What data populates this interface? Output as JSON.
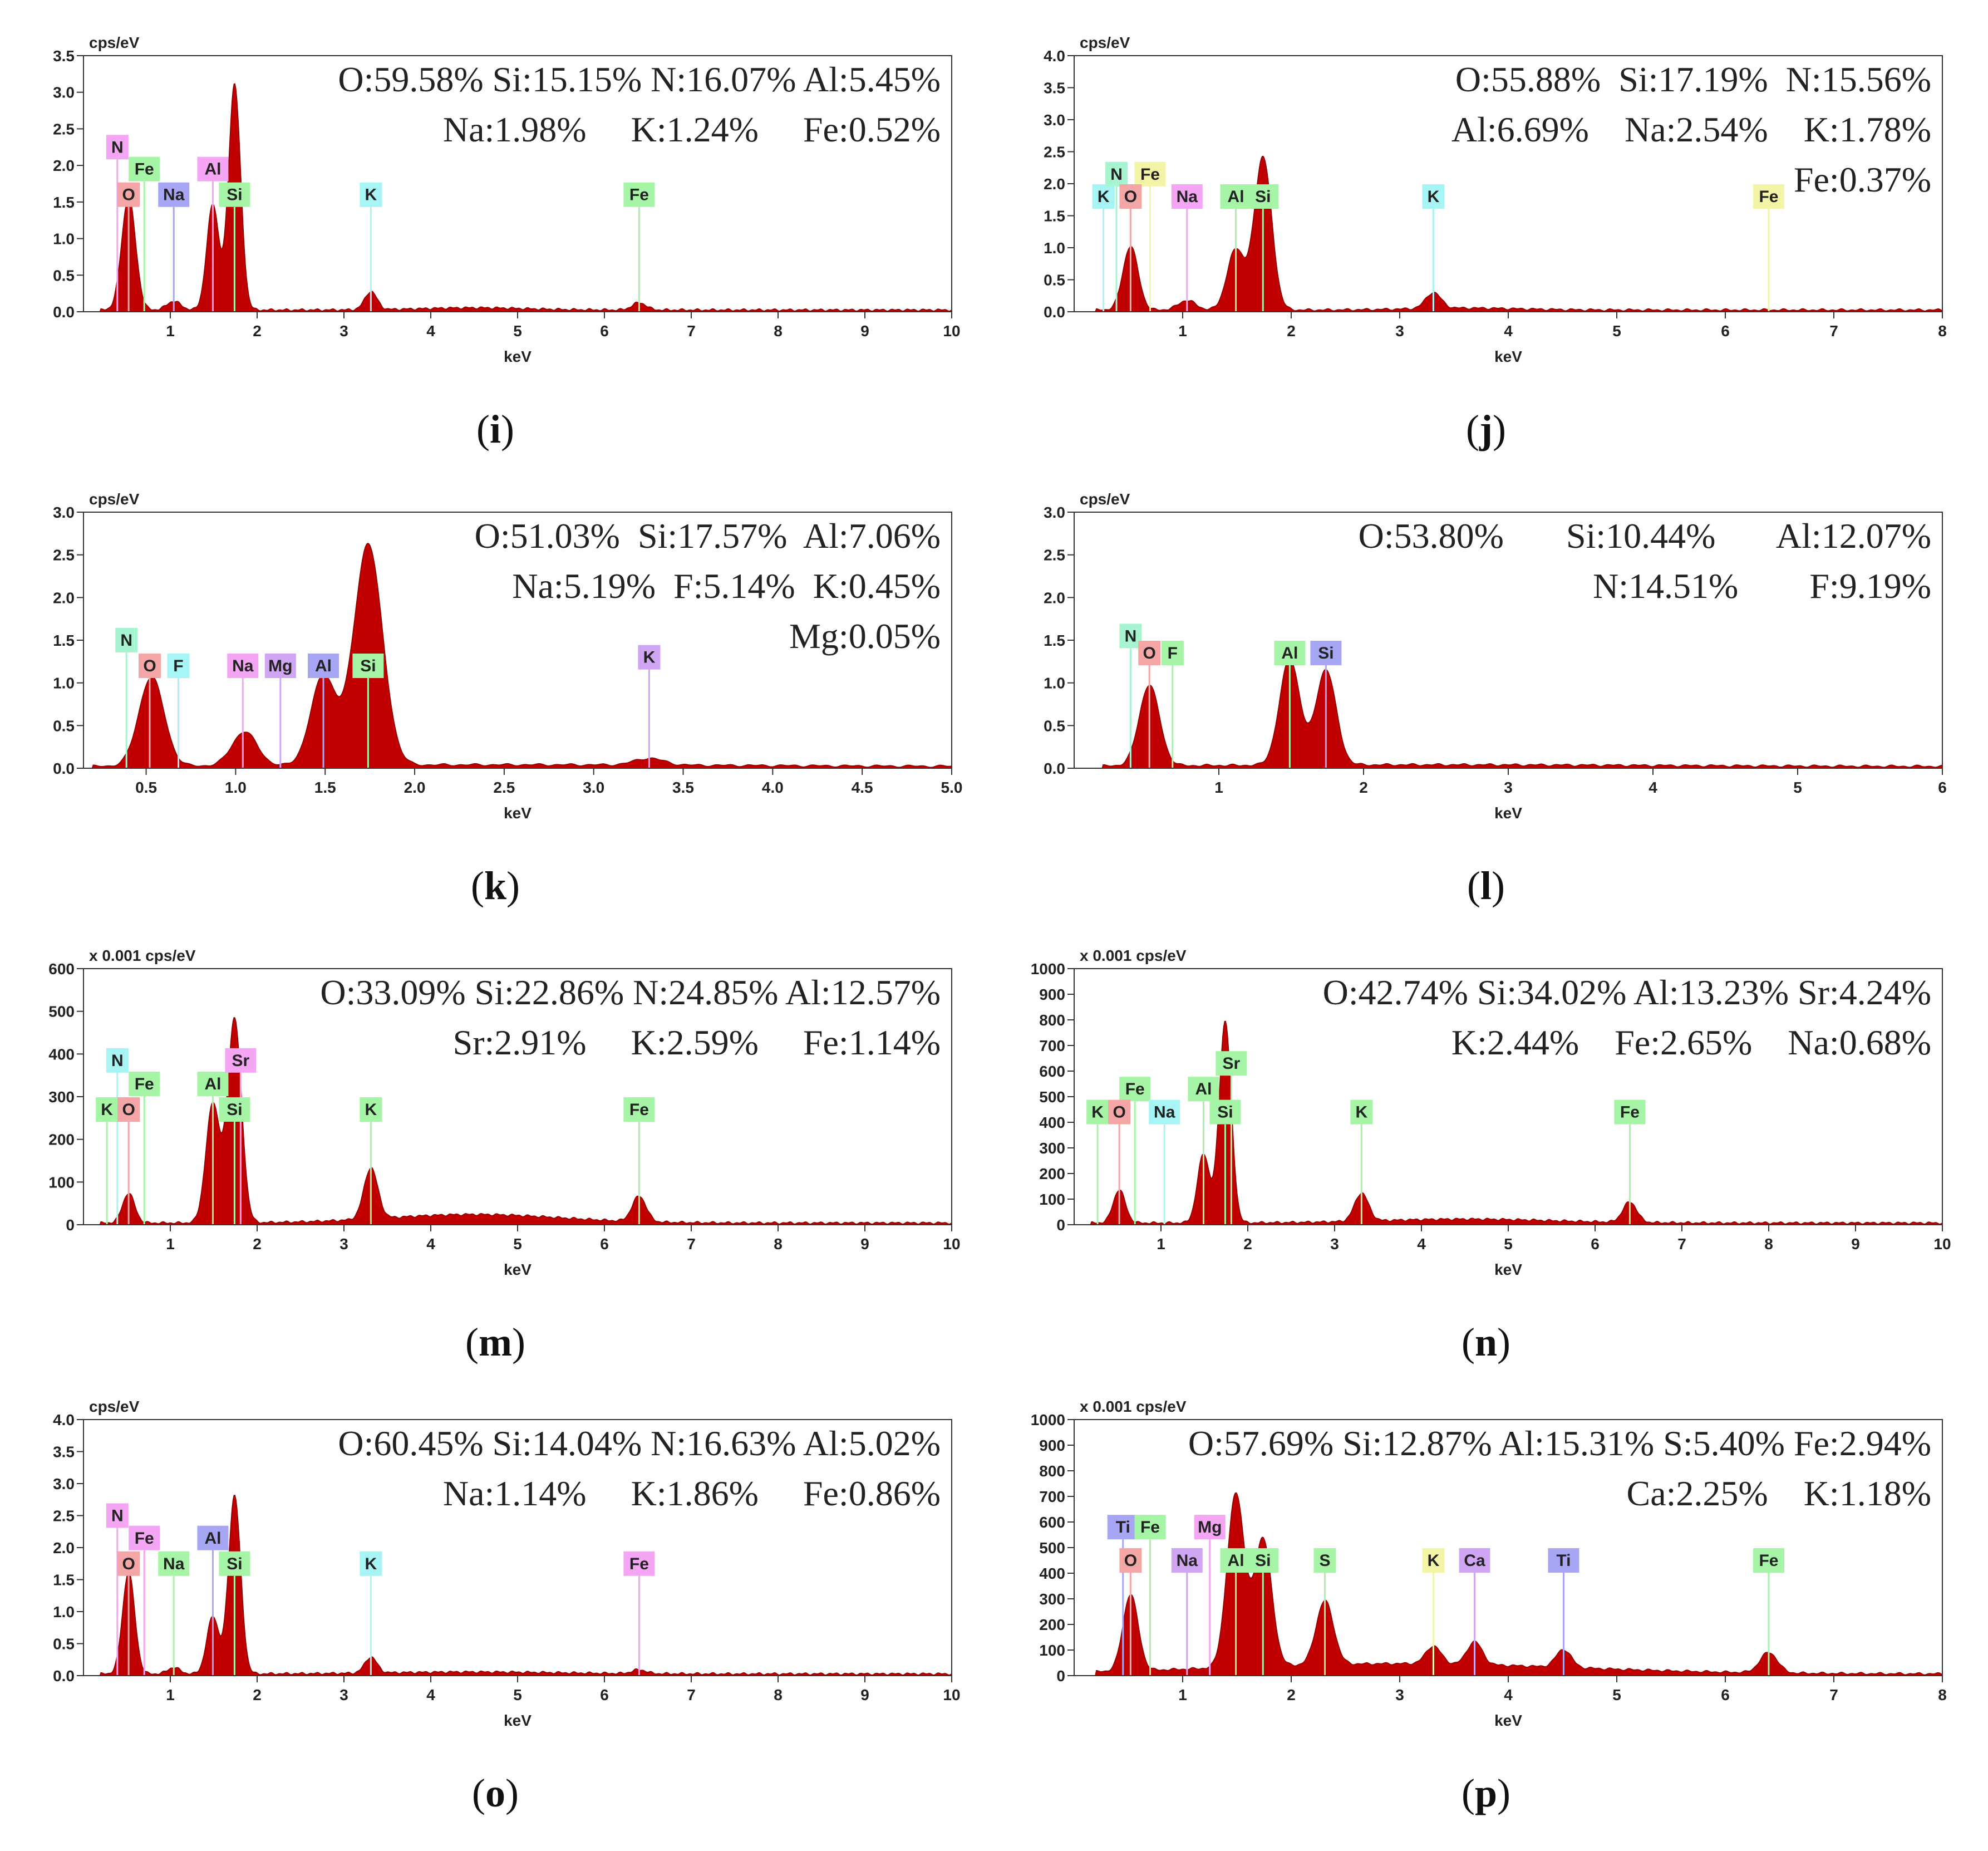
{
  "colors": {
    "spectrum": "#c00000",
    "spectrum_edge": "#8a0000",
    "axis": "#333333",
    "text": "#222222"
  },
  "chart_data": [
    {
      "id": "i",
      "type": "area",
      "caption_letter": "i",
      "units_label": "cps/eV",
      "xlabel": "keV",
      "xlim": [
        0,
        10
      ],
      "ylim": [
        0,
        3.5
      ],
      "xticks": [
        "1",
        "2",
        "3",
        "4",
        "5",
        "6",
        "7",
        "8",
        "9",
        "10"
      ],
      "yticks": [
        "0.0",
        "0.5",
        "1.0",
        "1.5",
        "2.0",
        "2.5",
        "3.0",
        "3.5"
      ],
      "composition_lines": [
        "O:59.58% Si:15.15% N:16.07% Al:5.45%",
        "Na:1.98%     K:1.24%     Fe:0.52%"
      ],
      "peaks": [
        [
          0.52,
          1.55,
          0.08
        ],
        [
          1.04,
          0.12,
          0.08
        ],
        [
          1.49,
          1.45,
          0.07
        ],
        [
          1.74,
          3.1,
          0.07
        ],
        [
          3.31,
          0.25,
          0.07
        ],
        [
          6.4,
          0.1,
          0.08
        ],
        [
          4.5,
          0.03,
          0.6
        ]
      ],
      "element_labels": [
        {
          "label": "N",
          "x": 0.39,
          "y": 2.25,
          "color": "#f4a6f4"
        },
        {
          "label": "Fe",
          "x": 0.7,
          "y": 1.95,
          "color": "#a6f4a6"
        },
        {
          "label": "O",
          "x": 0.52,
          "y": 1.6,
          "color": "#f4a6a6"
        },
        {
          "label": "Na",
          "x": 1.04,
          "y": 1.6,
          "color": "#a6a6f4"
        },
        {
          "label": "Al",
          "x": 1.49,
          "y": 1.95,
          "color": "#f4a6f4"
        },
        {
          "label": "Si",
          "x": 1.74,
          "y": 1.6,
          "color": "#a6f4a6"
        },
        {
          "label": "K",
          "x": 3.31,
          "y": 1.6,
          "color": "#a6f4f4"
        },
        {
          "label": "Fe",
          "x": 6.4,
          "y": 1.6,
          "color": "#a6f4a6"
        }
      ]
    },
    {
      "id": "j",
      "type": "area",
      "caption_letter": "j",
      "units_label": "cps/eV",
      "xlabel": "keV",
      "xlim": [
        0,
        8
      ],
      "ylim": [
        0,
        4.0
      ],
      "xticks": [
        "1",
        "2",
        "3",
        "4",
        "5",
        "6",
        "7",
        "8"
      ],
      "yticks": [
        "0.0",
        "0.5",
        "1.0",
        "1.5",
        "2.0",
        "2.5",
        "3.0",
        "3.5",
        "4.0"
      ],
      "composition_lines": [
        "O:55.88%  Si:17.19%  N:15.56%",
        "Al:6.69%    Na:2.54%    K:1.78%",
        "Fe:0.37%"
      ],
      "peaks": [
        [
          0.52,
          1.0,
          0.07
        ],
        [
          1.04,
          0.15,
          0.08
        ],
        [
          1.49,
          0.95,
          0.08
        ],
        [
          1.74,
          2.4,
          0.08
        ],
        [
          3.31,
          0.25,
          0.07
        ],
        [
          3.6,
          0.03,
          0.5
        ]
      ],
      "element_labels": [
        {
          "label": "K",
          "x": 0.27,
          "y": 1.8,
          "color": "#a6f4f4"
        },
        {
          "label": "N",
          "x": 0.39,
          "y": 2.15,
          "color": "#a6f4d0"
        },
        {
          "label": "Fe",
          "x": 0.7,
          "y": 2.15,
          "color": "#f4f4a6"
        },
        {
          "label": "O",
          "x": 0.52,
          "y": 1.8,
          "color": "#f4a6a6"
        },
        {
          "label": "Na",
          "x": 1.04,
          "y": 1.8,
          "color": "#f4a6f4"
        },
        {
          "label": "Al",
          "x": 1.49,
          "y": 1.8,
          "color": "#a6f4a6"
        },
        {
          "label": "Si",
          "x": 1.74,
          "y": 1.8,
          "color": "#a6f4a6"
        },
        {
          "label": "K",
          "x": 3.31,
          "y": 1.8,
          "color": "#a6f4f4"
        },
        {
          "label": "Fe",
          "x": 6.4,
          "y": 1.8,
          "color": "#f4f4a6"
        }
      ]
    },
    {
      "id": "k",
      "type": "area",
      "caption_letter": "k",
      "units_label": "cps/eV",
      "xlabel": "keV",
      "xlim": [
        0.15,
        5.0
      ],
      "ylim": [
        0,
        3.0
      ],
      "xticks": [
        "0.5",
        "1.0",
        "1.5",
        "2.0",
        "2.5",
        "3.0",
        "3.5",
        "4.0",
        "4.5",
        "5.0"
      ],
      "yticks": [
        "0.0",
        "0.5",
        "1.0",
        "1.5",
        "2.0",
        "2.5",
        "3.0"
      ],
      "composition_lines": [
        "O:51.03%  Si:17.57%  Al:7.06%",
        "Na:5.19%  F:5.14%  K:0.45%",
        "Mg:0.05%"
      ],
      "peaks": [
        [
          0.53,
          1.05,
          0.07
        ],
        [
          1.05,
          0.4,
          0.07
        ],
        [
          1.49,
          1.05,
          0.07
        ],
        [
          1.74,
          2.6,
          0.08
        ],
        [
          3.31,
          0.08,
          0.08
        ],
        [
          2.6,
          0.02,
          1.2
        ]
      ],
      "element_labels": [
        {
          "label": "N",
          "x": 0.39,
          "y": 1.5,
          "color": "#a6f4d0"
        },
        {
          "label": "O",
          "x": 0.52,
          "y": 1.2,
          "color": "#f4a6a6"
        },
        {
          "label": "F",
          "x": 0.68,
          "y": 1.2,
          "color": "#a6f4f4"
        },
        {
          "label": "Na",
          "x": 1.04,
          "y": 1.2,
          "color": "#f4a6f4"
        },
        {
          "label": "Mg",
          "x": 1.25,
          "y": 1.2,
          "color": "#d0a6f4"
        },
        {
          "label": "Al",
          "x": 1.49,
          "y": 1.2,
          "color": "#a6a6f4"
        },
        {
          "label": "Si",
          "x": 1.74,
          "y": 1.2,
          "color": "#a6f4a6"
        },
        {
          "label": "K",
          "x": 3.31,
          "y": 1.3,
          "color": "#d0a6f4"
        }
      ]
    },
    {
      "id": "l",
      "type": "area",
      "caption_letter": "l",
      "units_label": "cps/eV",
      "xlabel": "keV",
      "xlim": [
        0,
        6
      ],
      "ylim": [
        0,
        3.0
      ],
      "xticks": [
        "1",
        "2",
        "3",
        "4",
        "5",
        "6"
      ],
      "yticks": [
        "0.0",
        "0.5",
        "1.0",
        "1.5",
        "2.0",
        "2.5",
        "3.0"
      ],
      "composition_lines": [
        "O:53.80%       Si:10.44%       Al:12.07%",
        "N:14.51%        F:9.19%"
      ],
      "peaks": [
        [
          0.52,
          0.95,
          0.07
        ],
        [
          1.49,
          1.25,
          0.07
        ],
        [
          1.74,
          1.12,
          0.07
        ],
        [
          2.5,
          0.02,
          1.5
        ]
      ],
      "element_labels": [
        {
          "label": "N",
          "x": 0.39,
          "y": 1.55,
          "color": "#a6f4d0"
        },
        {
          "label": "O",
          "x": 0.52,
          "y": 1.35,
          "color": "#f4a6a6"
        },
        {
          "label": "F",
          "x": 0.68,
          "y": 1.35,
          "color": "#a6f4a6"
        },
        {
          "label": "Al",
          "x": 1.49,
          "y": 1.35,
          "color": "#a6f4a6"
        },
        {
          "label": "Si",
          "x": 1.74,
          "y": 1.35,
          "color": "#a6a6f4"
        }
      ]
    },
    {
      "id": "m",
      "type": "area",
      "caption_letter": "m",
      "units_label": "x 0.001 cps/eV",
      "xlabel": "keV",
      "xlim": [
        0,
        10
      ],
      "ylim": [
        0,
        600
      ],
      "xticks": [
        "1",
        "2",
        "3",
        "4",
        "5",
        "6",
        "7",
        "8",
        "9",
        "10"
      ],
      "yticks": [
        "0",
        "100",
        "200",
        "300",
        "400",
        "500",
        "600"
      ],
      "composition_lines": [
        "O:33.09% Si:22.86% N:24.85% Al:12.57%",
        "Sr:2.91%     K:2.59%     Fe:1.14%"
      ],
      "peaks": [
        [
          0.52,
          70,
          0.07
        ],
        [
          1.49,
          280,
          0.08
        ],
        [
          1.74,
          480,
          0.08
        ],
        [
          3.31,
          120,
          0.08
        ],
        [
          6.4,
          60,
          0.08
        ],
        [
          4.5,
          20,
          1.0
        ]
      ],
      "element_labels": [
        {
          "label": "N",
          "x": 0.39,
          "y": 385,
          "color": "#a6f4f4"
        },
        {
          "label": "Fe",
          "x": 0.7,
          "y": 330,
          "color": "#a6f4a6"
        },
        {
          "label": "K",
          "x": 0.27,
          "y": 270,
          "color": "#a6f4a6"
        },
        {
          "label": "O",
          "x": 0.52,
          "y": 270,
          "color": "#f4a6a6"
        },
        {
          "label": "Al",
          "x": 1.49,
          "y": 330,
          "color": "#a6f4a6"
        },
        {
          "label": "Sr",
          "x": 1.81,
          "y": 385,
          "color": "#f4a6f4"
        },
        {
          "label": "Si",
          "x": 1.74,
          "y": 270,
          "color": "#a6f4a6"
        },
        {
          "label": "K",
          "x": 3.31,
          "y": 270,
          "color": "#a6f4a6"
        },
        {
          "label": "Fe",
          "x": 6.4,
          "y": 270,
          "color": "#a6f4a6"
        }
      ]
    },
    {
      "id": "n",
      "type": "area",
      "caption_letter": "n",
      "units_label": "x 0.001 cps/eV",
      "xlabel": "keV",
      "xlim": [
        0,
        10
      ],
      "ylim": [
        0,
        1000
      ],
      "xticks": [
        "1",
        "2",
        "3",
        "4",
        "5",
        "6",
        "7",
        "8",
        "9",
        "10"
      ],
      "yticks": [
        "0",
        "100",
        "200",
        "300",
        "400",
        "500",
        "600",
        "700",
        "800",
        "900",
        "1000"
      ],
      "composition_lines": [
        "O:42.74% Si:34.02% Al:13.23% Sr:4.24%",
        "K:2.44%    Fe:2.65%    Na:0.68%"
      ],
      "peaks": [
        [
          0.52,
          130,
          0.07
        ],
        [
          1.49,
          270,
          0.07
        ],
        [
          1.74,
          790,
          0.07
        ],
        [
          3.31,
          110,
          0.08
        ],
        [
          6.4,
          80,
          0.08
        ],
        [
          4.5,
          15,
          1.0
        ]
      ],
      "element_labels": [
        {
          "label": "Fe",
          "x": 0.7,
          "y": 530,
          "color": "#a6f4a6"
        },
        {
          "label": "Al",
          "x": 1.49,
          "y": 530,
          "color": "#a6f4a6"
        },
        {
          "label": "Sr",
          "x": 1.81,
          "y": 630,
          "color": "#a6f4a6"
        },
        {
          "label": "K",
          "x": 0.27,
          "y": 440,
          "color": "#a6f4a6"
        },
        {
          "label": "O",
          "x": 0.52,
          "y": 440,
          "color": "#f4a6a6"
        },
        {
          "label": "Na",
          "x": 1.04,
          "y": 440,
          "color": "#a6f4f4"
        },
        {
          "label": "Si",
          "x": 1.74,
          "y": 440,
          "color": "#a6f4a6"
        },
        {
          "label": "K",
          "x": 3.31,
          "y": 440,
          "color": "#a6f4a6"
        },
        {
          "label": "Fe",
          "x": 6.4,
          "y": 440,
          "color": "#a6f4a6"
        }
      ]
    },
    {
      "id": "o",
      "type": "area",
      "caption_letter": "o",
      "units_label": "cps/eV",
      "xlabel": "keV",
      "xlim": [
        0,
        10
      ],
      "ylim": [
        0,
        4.0
      ],
      "xticks": [
        "1",
        "2",
        "3",
        "4",
        "5",
        "6",
        "7",
        "8",
        "9",
        "10"
      ],
      "yticks": [
        "0.0",
        "0.5",
        "1.0",
        "1.5",
        "2.0",
        "2.5",
        "3.0",
        "3.5",
        "4.0"
      ],
      "composition_lines": [
        "O:60.45% Si:14.04% N:16.63% Al:5.02%",
        "Na:1.14%     K:1.86%     Fe:0.86%"
      ],
      "peaks": [
        [
          0.52,
          1.6,
          0.07
        ],
        [
          1.04,
          0.1,
          0.07
        ],
        [
          1.49,
          0.9,
          0.07
        ],
        [
          1.74,
          2.8,
          0.07
        ],
        [
          3.31,
          0.25,
          0.07
        ],
        [
          6.4,
          0.06,
          0.08
        ],
        [
          4.5,
          0.03,
          1.0
        ]
      ],
      "element_labels": [
        {
          "label": "N",
          "x": 0.39,
          "y": 2.5,
          "color": "#f4a6f4"
        },
        {
          "label": "Fe",
          "x": 0.7,
          "y": 2.15,
          "color": "#f4a6f4"
        },
        {
          "label": "Al",
          "x": 1.49,
          "y": 2.15,
          "color": "#a6a6f4"
        },
        {
          "label": "O",
          "x": 0.52,
          "y": 1.75,
          "color": "#f4a6a6"
        },
        {
          "label": "Na",
          "x": 1.04,
          "y": 1.75,
          "color": "#a6f4a6"
        },
        {
          "label": "Si",
          "x": 1.74,
          "y": 1.75,
          "color": "#a6f4a6"
        },
        {
          "label": "K",
          "x": 3.31,
          "y": 1.75,
          "color": "#a6f4f4"
        },
        {
          "label": "Fe",
          "x": 6.4,
          "y": 1.75,
          "color": "#f4a6f4"
        }
      ]
    },
    {
      "id": "p",
      "type": "area",
      "caption_letter": "p",
      "units_label": "x 0.001 cps/eV",
      "xlabel": "keV",
      "xlim": [
        0,
        8
      ],
      "ylim": [
        0,
        1000
      ],
      "xticks": [
        "1",
        "2",
        "3",
        "4",
        "5",
        "6",
        "7",
        "8"
      ],
      "yticks": [
        "0",
        "100",
        "200",
        "300",
        "400",
        "500",
        "600",
        "700",
        "800",
        "900",
        "1000"
      ],
      "composition_lines": [
        "O:57.69% Si:12.87% Al:15.31% S:5.40% Fe:2.94%",
        "Ca:2.25%    K:1.18%"
      ],
      "peaks": [
        [
          0.52,
          300,
          0.07
        ],
        [
          1.49,
          680,
          0.08
        ],
        [
          1.74,
          500,
          0.08
        ],
        [
          2.31,
          250,
          0.08
        ],
        [
          3.31,
          70,
          0.07
        ],
        [
          3.69,
          90,
          0.07
        ],
        [
          4.51,
          70,
          0.07
        ],
        [
          6.4,
          80,
          0.08
        ],
        [
          3.0,
          40,
          1.6
        ]
      ],
      "element_labels": [
        {
          "label": "Ti",
          "x": 0.45,
          "y": 580,
          "color": "#a6a6f4"
        },
        {
          "label": "Fe",
          "x": 0.7,
          "y": 580,
          "color": "#a6f4a6"
        },
        {
          "label": "Mg",
          "x": 1.25,
          "y": 580,
          "color": "#f4a6f4"
        },
        {
          "label": "O",
          "x": 0.52,
          "y": 450,
          "color": "#f4a6a6"
        },
        {
          "label": "Na",
          "x": 1.04,
          "y": 450,
          "color": "#d0a6f4"
        },
        {
          "label": "Al",
          "x": 1.49,
          "y": 450,
          "color": "#a6f4a6"
        },
        {
          "label": "Si",
          "x": 1.74,
          "y": 450,
          "color": "#a6f4a6"
        },
        {
          "label": "S",
          "x": 2.31,
          "y": 450,
          "color": "#a6f4a6"
        },
        {
          "label": "K",
          "x": 3.31,
          "y": 450,
          "color": "#f4f4a6"
        },
        {
          "label": "Ca",
          "x": 3.69,
          "y": 450,
          "color": "#d0a6f4"
        },
        {
          "label": "Ti",
          "x": 4.51,
          "y": 450,
          "color": "#a6a6f4"
        },
        {
          "label": "Fe",
          "x": 6.4,
          "y": 450,
          "color": "#a6f4a6"
        }
      ]
    }
  ]
}
